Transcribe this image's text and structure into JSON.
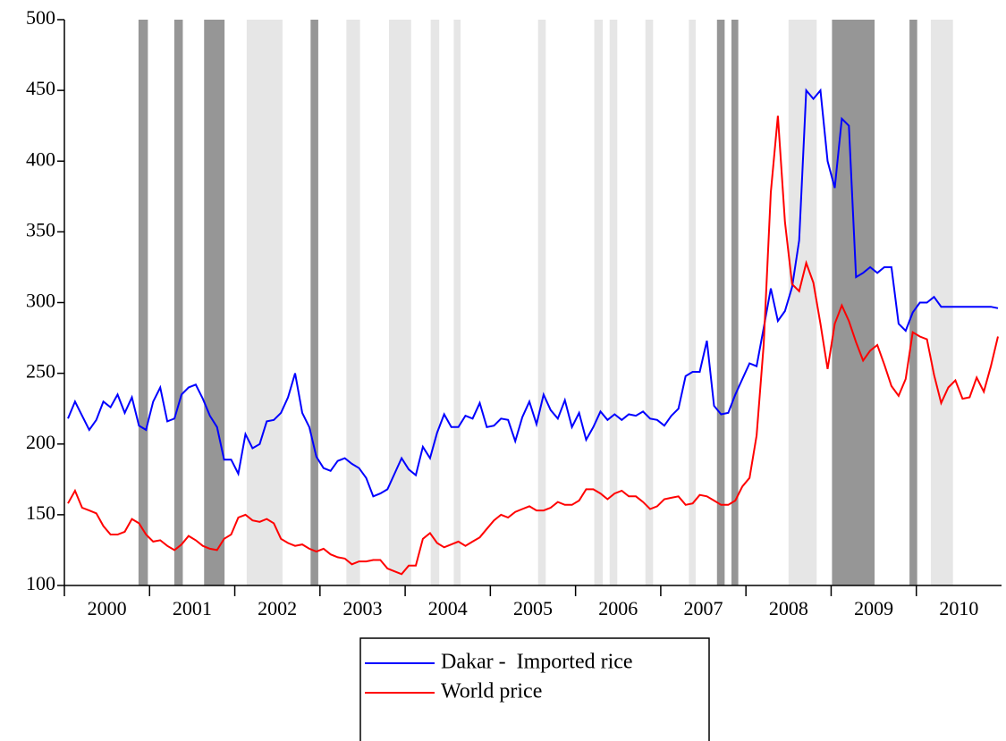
{
  "chart_data": {
    "type": "line",
    "x": [
      2000.042,
      2000.125,
      2000.208,
      2000.292,
      2000.375,
      2000.458,
      2000.542,
      2000.625,
      2000.708,
      2000.792,
      2000.875,
      2000.958,
      2001.042,
      2001.125,
      2001.208,
      2001.292,
      2001.375,
      2001.458,
      2001.542,
      2001.625,
      2001.708,
      2001.792,
      2001.875,
      2001.958,
      2002.042,
      2002.125,
      2002.208,
      2002.292,
      2002.375,
      2002.458,
      2002.542,
      2002.625,
      2002.708,
      2002.792,
      2002.875,
      2002.958,
      2003.042,
      2003.125,
      2003.208,
      2003.292,
      2003.375,
      2003.458,
      2003.542,
      2003.625,
      2003.708,
      2003.792,
      2003.875,
      2003.958,
      2004.042,
      2004.125,
      2004.208,
      2004.292,
      2004.375,
      2004.458,
      2004.542,
      2004.625,
      2004.708,
      2004.792,
      2004.875,
      2004.958,
      2005.042,
      2005.125,
      2005.208,
      2005.292,
      2005.375,
      2005.458,
      2005.542,
      2005.625,
      2005.708,
      2005.792,
      2005.875,
      2005.958,
      2006.042,
      2006.125,
      2006.208,
      2006.292,
      2006.375,
      2006.458,
      2006.542,
      2006.625,
      2006.708,
      2006.792,
      2006.875,
      2006.958,
      2007.042,
      2007.125,
      2007.208,
      2007.292,
      2007.375,
      2007.458,
      2007.542,
      2007.625,
      2007.708,
      2007.792,
      2007.875,
      2007.958,
      2008.042,
      2008.125,
      2008.208,
      2008.292,
      2008.375,
      2008.458,
      2008.542,
      2008.625,
      2008.708,
      2008.792,
      2008.875,
      2008.958,
      2009.042,
      2009.125,
      2009.208,
      2009.292,
      2009.375,
      2009.458,
      2009.542,
      2009.625,
      2009.708,
      2009.792,
      2009.875,
      2009.958,
      2010.042,
      2010.125,
      2010.208,
      2010.292,
      2010.375,
      2010.458,
      2010.542,
      2010.625,
      2010.708,
      2010.792,
      2010.875,
      2010.958
    ],
    "series": [
      {
        "name": "Dakar -  Imported rice",
        "color": "#0000ff",
        "values": [
          218,
          230,
          220,
          210,
          217,
          230,
          226,
          235,
          222,
          233,
          213,
          210,
          230,
          240,
          216,
          218,
          235,
          240,
          242,
          232,
          220,
          212,
          189,
          189,
          179,
          207,
          197,
          200,
          216,
          217,
          222,
          233,
          250,
          222,
          212,
          191,
          183,
          181,
          188,
          190,
          186,
          183,
          176,
          163,
          165,
          168,
          179,
          190,
          182,
          178,
          198,
          190,
          208,
          221,
          212,
          212,
          220,
          218,
          229,
          212,
          213,
          218,
          217,
          202,
          219,
          230,
          214,
          235,
          224,
          218,
          231,
          212,
          222,
          203,
          212,
          223,
          217,
          221,
          217,
          221,
          220,
          223,
          218,
          217,
          213,
          220,
          225,
          248,
          251,
          251,
          273,
          227,
          221,
          222,
          235,
          246,
          257,
          255,
          282,
          310,
          287,
          294,
          311,
          344,
          450,
          444,
          450,
          400,
          381,
          430,
          425,
          318,
          321,
          325,
          321,
          325,
          325,
          285,
          280,
          293,
          300,
          300,
          304,
          297,
          297,
          297,
          297,
          297,
          297,
          297,
          297,
          296
        ]
      },
      {
        "name": "World price",
        "color": "#ff0000",
        "values": [
          158,
          167,
          155,
          153,
          151,
          142,
          136,
          136,
          138,
          147,
          144,
          136,
          131,
          132,
          128,
          125,
          129,
          135,
          132,
          128,
          126,
          125,
          133,
          136,
          148,
          150,
          146,
          145,
          147,
          144,
          133,
          130,
          128,
          129,
          126,
          124,
          126,
          122,
          120,
          119,
          115,
          117,
          117,
          118,
          118,
          112,
          110,
          108,
          114,
          114,
          133,
          137,
          130,
          127,
          129,
          131,
          128,
          131,
          134,
          140,
          146,
          150,
          148,
          152,
          154,
          156,
          153,
          153,
          155,
          159,
          157,
          157,
          160,
          168,
          168,
          165,
          161,
          165,
          167,
          163,
          163,
          159,
          154,
          156,
          161,
          162,
          163,
          157,
          158,
          164,
          163,
          160,
          157,
          157,
          160,
          170,
          176,
          206,
          270,
          378,
          432,
          357,
          313,
          308,
          328,
          314,
          285,
          253,
          285,
          298,
          287,
          272,
          259,
          266,
          270,
          256,
          241,
          234,
          246,
          279,
          276,
          274,
          249,
          229,
          240,
          245,
          232,
          233,
          247,
          237,
          255,
          276
        ]
      }
    ],
    "xlim": [
      2000,
      2011
    ],
    "xticks": [
      {
        "value": 2000,
        "label": "2000"
      },
      {
        "value": 2001,
        "label": "2001"
      },
      {
        "value": 2002,
        "label": "2002"
      },
      {
        "value": 2003,
        "label": "2003"
      },
      {
        "value": 2004,
        "label": "2004"
      },
      {
        "value": 2005,
        "label": "2005"
      },
      {
        "value": 2006,
        "label": "2006"
      },
      {
        "value": 2007,
        "label": "2007"
      },
      {
        "value": 2008,
        "label": "2008"
      },
      {
        "value": 2009,
        "label": "2009"
      },
      {
        "value": 2010,
        "label": "2010"
      }
    ],
    "ylim": [
      100,
      500
    ],
    "yticks": [
      100,
      150,
      200,
      250,
      300,
      350,
      400,
      450,
      500
    ],
    "shaded": [
      {
        "from": 2000.87,
        "to": 2000.98,
        "color": "#969696"
      },
      {
        "from": 2001.29,
        "to": 2001.39,
        "color": "#969696"
      },
      {
        "from": 2001.64,
        "to": 2001.88,
        "color": "#969696"
      },
      {
        "from": 2002.89,
        "to": 2002.98,
        "color": "#969696"
      },
      {
        "from": 2007.66,
        "to": 2007.75,
        "color": "#969696"
      },
      {
        "from": 2007.83,
        "to": 2007.91,
        "color": "#969696"
      },
      {
        "from": 2009.01,
        "to": 2009.51,
        "color": "#969696"
      },
      {
        "from": 2009.92,
        "to": 2010.01,
        "color": "#969696"
      },
      {
        "from": 2002.14,
        "to": 2002.56,
        "color": "#e6e6e6"
      },
      {
        "from": 2003.31,
        "to": 2003.47,
        "color": "#e6e6e6"
      },
      {
        "from": 2003.81,
        "to": 2004.07,
        "color": "#e6e6e6"
      },
      {
        "from": 2004.3,
        "to": 2004.4,
        "color": "#e6e6e6"
      },
      {
        "from": 2004.57,
        "to": 2004.65,
        "color": "#e6e6e6"
      },
      {
        "from": 2005.56,
        "to": 2005.65,
        "color": "#e6e6e6"
      },
      {
        "from": 2006.22,
        "to": 2006.32,
        "color": "#e6e6e6"
      },
      {
        "from": 2006.4,
        "to": 2006.49,
        "color": "#e6e6e6"
      },
      {
        "from": 2006.82,
        "to": 2006.91,
        "color": "#e6e6e6"
      },
      {
        "from": 2007.33,
        "to": 2007.41,
        "color": "#e6e6e6"
      },
      {
        "from": 2008.5,
        "to": 2008.83,
        "color": "#e6e6e6"
      },
      {
        "from": 2010.17,
        "to": 2010.43,
        "color": "#e6e6e6"
      }
    ],
    "legend": "bottom"
  }
}
